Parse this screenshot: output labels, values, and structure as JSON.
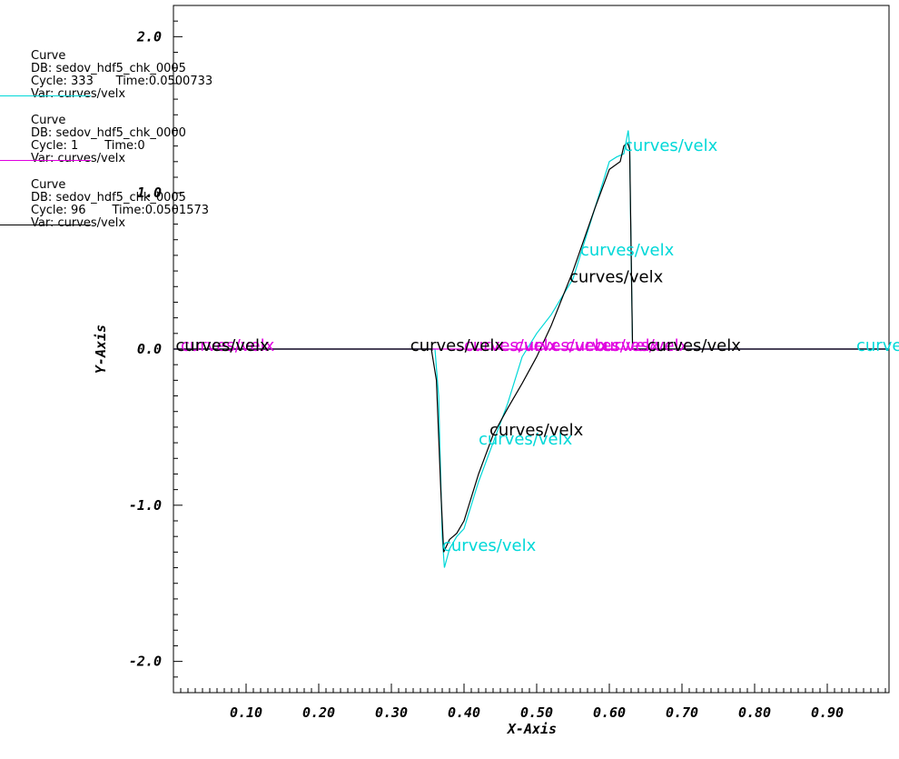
{
  "chart_data": {
    "type": "line",
    "xlabel": "X-Axis",
    "ylabel": "Y-Axis",
    "xlim": [
      0.0,
      0.985
    ],
    "ylim": [
      -2.2,
      2.2
    ],
    "grid": false,
    "legend_position": "top-left",
    "x_ticks": [
      0.1,
      0.2,
      0.3,
      0.4,
      0.5,
      0.6,
      0.7,
      0.8,
      0.9
    ],
    "x_tick_labels": [
      "0.10",
      "0.20",
      "0.30",
      "0.40",
      "0.50",
      "0.60",
      "0.70",
      "0.80",
      "0.90"
    ],
    "y_ticks": [
      2.0,
      1.0,
      0.0,
      -1.0,
      -2.0
    ],
    "y_tick_labels": [
      "2.0",
      "1.0",
      "0.0",
      "-1.0",
      "-2.0"
    ],
    "series": [
      {
        "color": "#00d8d8",
        "legend": [
          "Curve",
          "DB: sedov_hdf5_chk_0005",
          "Cycle: 333      Time:0.0500733",
          "Var: curves/velx"
        ],
        "x": [
          0.0,
          0.36,
          0.365,
          0.37,
          0.373,
          0.38,
          0.39,
          0.4,
          0.42,
          0.44,
          0.46,
          0.48,
          0.5,
          0.52,
          0.55,
          0.58,
          0.6,
          0.61,
          0.62,
          0.626,
          0.628,
          0.63,
          0.632,
          0.985
        ],
        "y": [
          0.0,
          0.0,
          -0.3,
          -1.2,
          -1.4,
          -1.28,
          -1.2,
          -1.15,
          -0.85,
          -0.6,
          -0.35,
          -0.05,
          0.1,
          0.22,
          0.45,
          0.9,
          1.2,
          1.23,
          1.25,
          1.4,
          1.3,
          0.6,
          0.0,
          0.0
        ],
        "labels": [
          {
            "text": "curves/velx",
            "x": 0.62,
            "y": 1.28
          },
          {
            "text": "curves/velx",
            "x": 0.56,
            "y": 0.61
          },
          {
            "text": "curves/velx",
            "x": 0.42,
            "y": -0.6
          },
          {
            "text": "curves/velx",
            "x": 0.37,
            "y": -1.28
          },
          {
            "text": "curves/velx",
            "x": 0.94,
            "y": 0.0
          }
        ]
      },
      {
        "color": "#e000e0",
        "legend": [
          "Curve",
          "DB: sedov_hdf5_chk_0000",
          "Cycle: 1       Time:0",
          "Var: curves/velx"
        ],
        "x": [
          0.0,
          0.985
        ],
        "y": [
          0.0,
          0.0
        ],
        "labels": [
          {
            "text": "curves/velx",
            "x": 0.01,
            "y": 0.0
          },
          {
            "text": "curves/velx",
            "x": 0.4,
            "y": 0.0
          },
          {
            "text": "curves/velx",
            "x": 0.47,
            "y": 0.0
          },
          {
            "text": "curves/velx",
            "x": 0.54,
            "y": 0.0
          },
          {
            "text": "curves/velx",
            "x": 0.58,
            "y": 0.0
          }
        ]
      },
      {
        "color": "#000000",
        "legend": [
          "Curve",
          "DB: sedov_hdf5_chk_0005",
          "Cycle: 96       Time:0.0501573",
          "Var: curves/velx"
        ],
        "x": [
          0.0,
          0.355,
          0.362,
          0.368,
          0.372,
          0.38,
          0.39,
          0.4,
          0.42,
          0.44,
          0.46,
          0.48,
          0.5,
          0.52,
          0.55,
          0.58,
          0.6,
          0.615,
          0.62,
          0.625,
          0.628,
          0.632,
          0.985
        ],
        "y": [
          0.0,
          0.0,
          -0.2,
          -0.9,
          -1.3,
          -1.22,
          -1.18,
          -1.1,
          -0.8,
          -0.55,
          -0.38,
          -0.22,
          -0.05,
          0.15,
          0.5,
          0.9,
          1.15,
          1.2,
          1.3,
          1.32,
          1.28,
          0.0,
          0.0
        ],
        "labels": [
          {
            "text": "curves/velx",
            "x": 0.003,
            "y": 0.0
          },
          {
            "text": "curves/velx",
            "x": 0.326,
            "y": 0.0
          },
          {
            "text": "curves/velx",
            "x": 0.652,
            "y": 0.0
          },
          {
            "text": "curves/velx",
            "x": 0.545,
            "y": 0.44
          },
          {
            "text": "curves/velx",
            "x": 0.435,
            "y": -0.54
          }
        ]
      }
    ]
  }
}
